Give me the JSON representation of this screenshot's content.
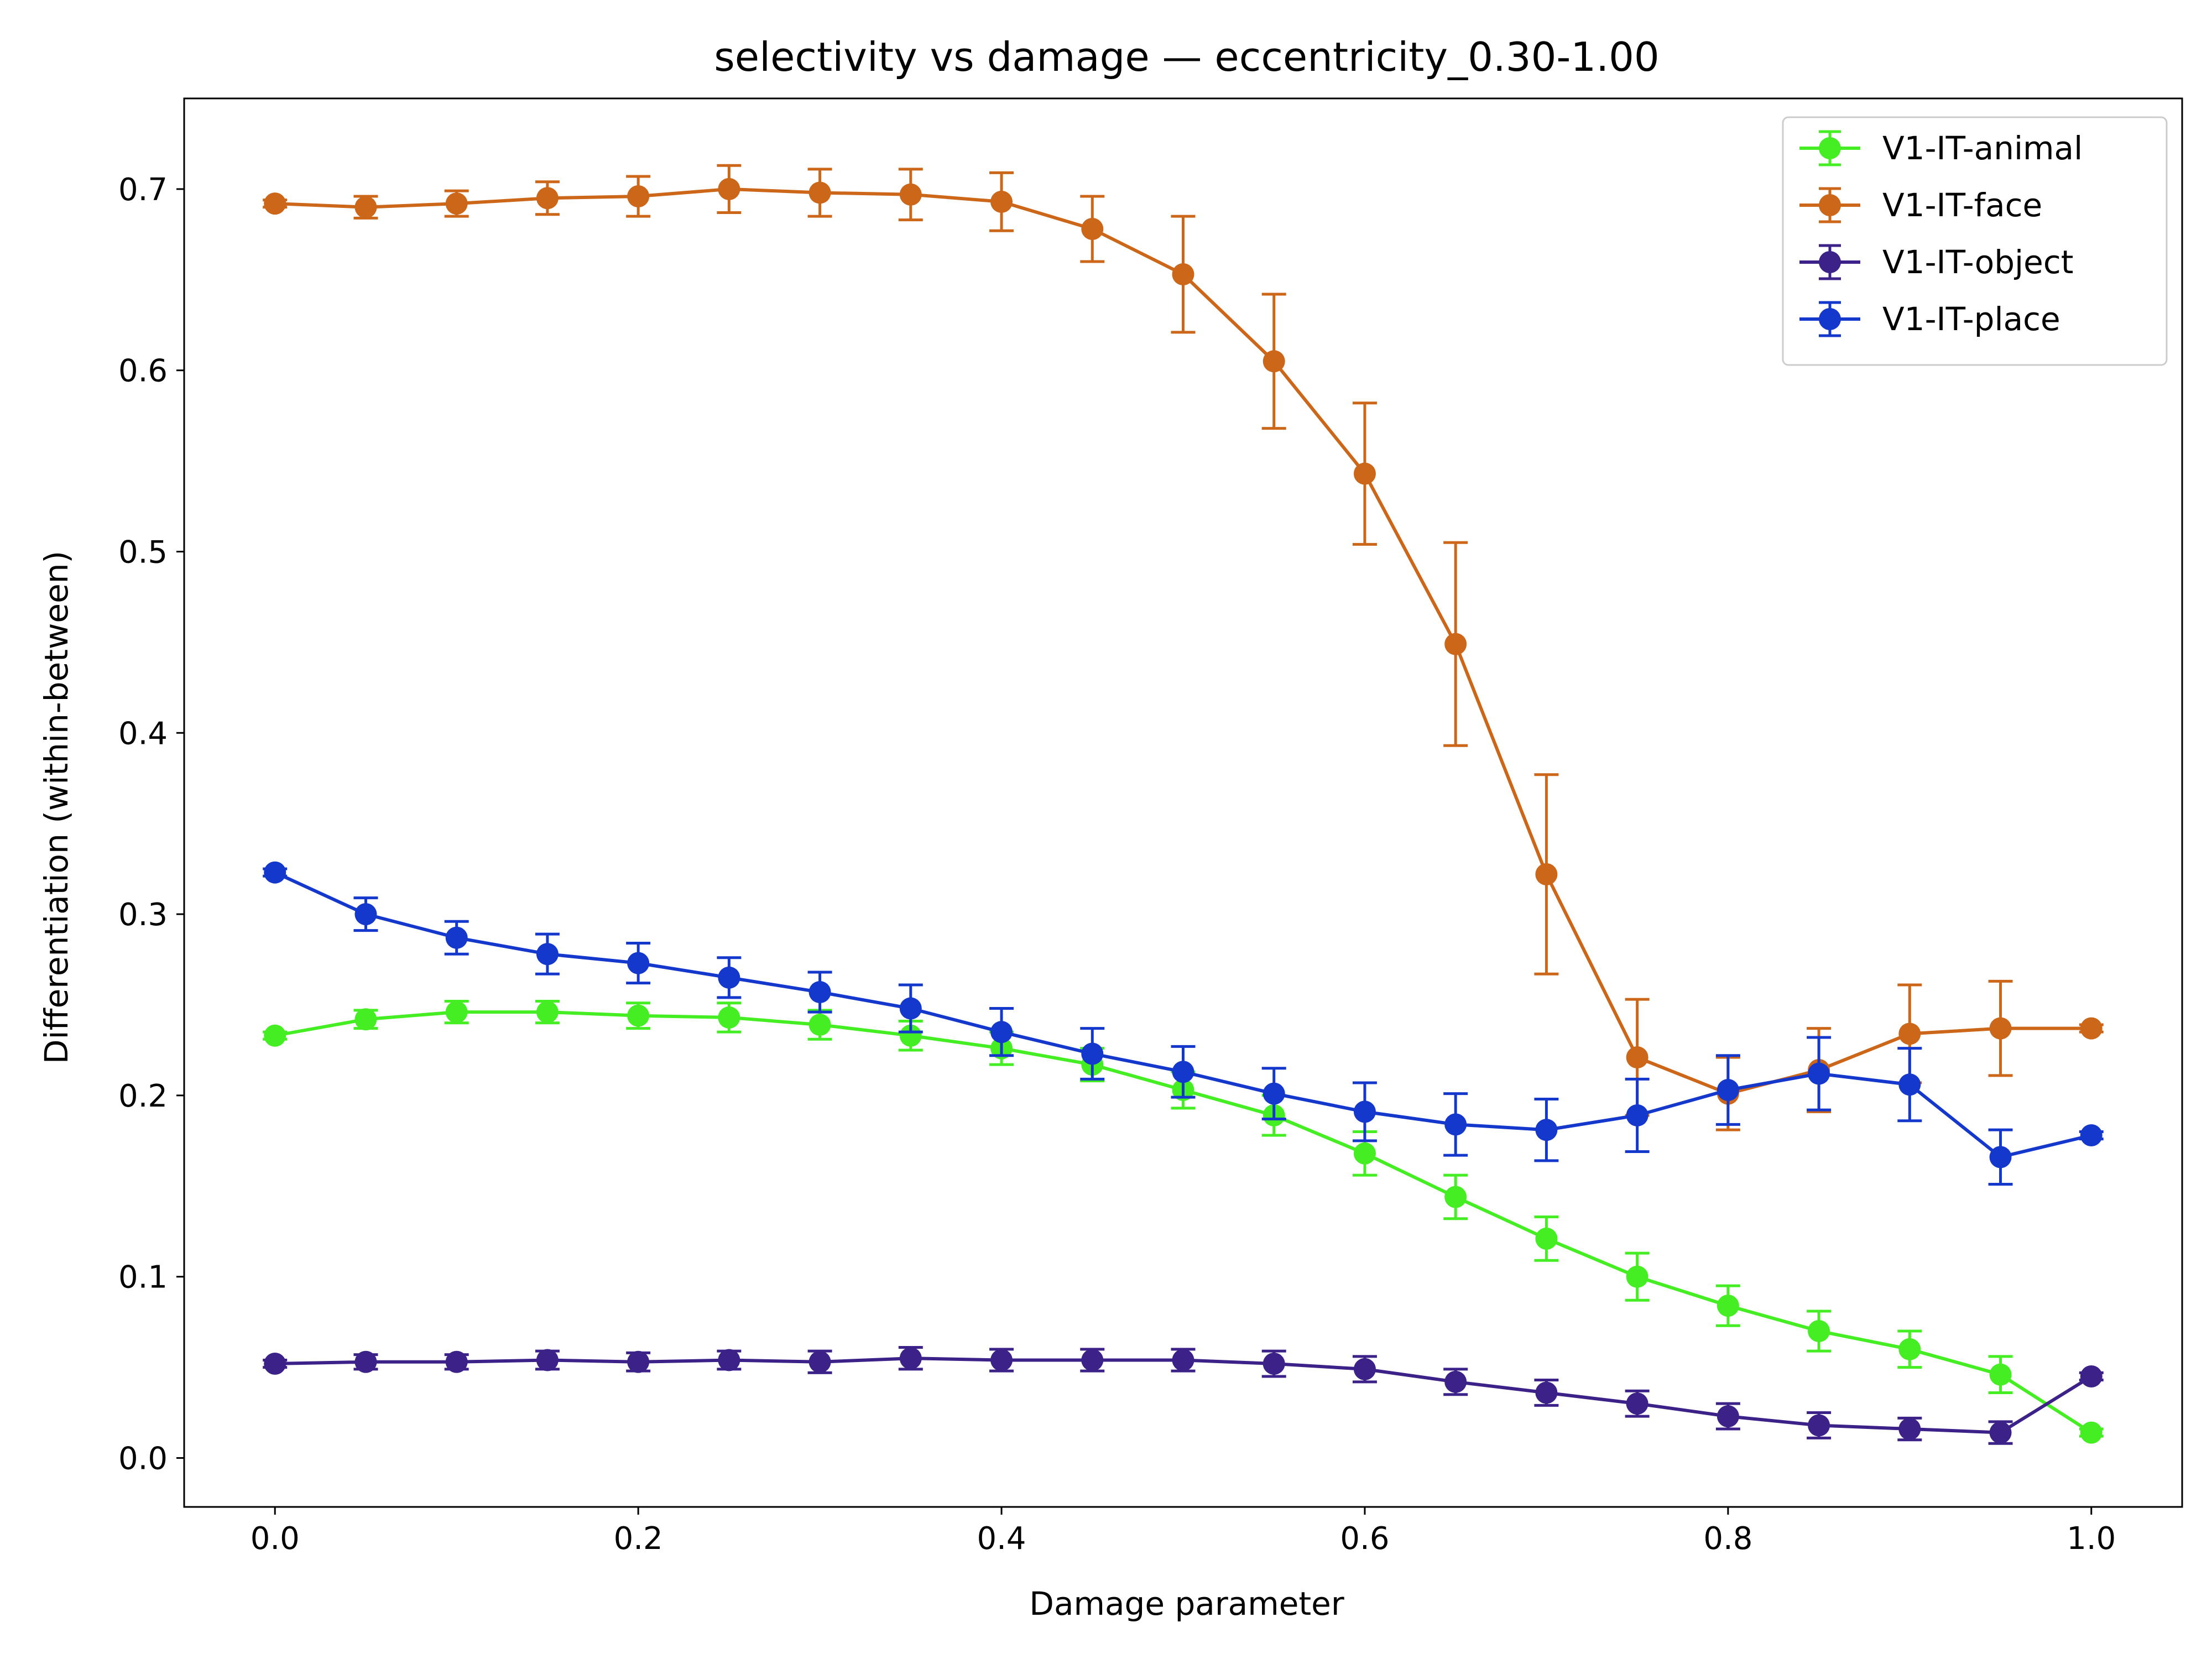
{
  "chart_data": {
    "type": "line",
    "title": "selectivity vs damage — eccentricity_0.30-1.00",
    "xlabel": "Damage parameter",
    "ylabel": "Differentiation (within-between)",
    "xlim": [
      -0.05,
      1.05
    ],
    "ylim": [
      -0.027,
      0.75
    ],
    "xticks": [
      0.0,
      0.2,
      0.4,
      0.6,
      0.8,
      1.0
    ],
    "xtick_labels": [
      "0.0",
      "0.2",
      "0.4",
      "0.6",
      "0.8",
      "1.0"
    ],
    "yticks": [
      0.0,
      0.1,
      0.2,
      0.3,
      0.4,
      0.5,
      0.6,
      0.7
    ],
    "ytick_labels": [
      "0.0",
      "0.1",
      "0.2",
      "0.3",
      "0.4",
      "0.5",
      "0.6",
      "0.7"
    ],
    "grid": false,
    "legend_position": "top-right",
    "x": [
      0.0,
      0.05,
      0.1,
      0.15,
      0.2,
      0.25,
      0.3,
      0.35,
      0.4,
      0.45,
      0.5,
      0.55,
      0.6,
      0.65,
      0.7,
      0.75,
      0.8,
      0.85,
      0.9,
      0.95,
      1.0
    ],
    "series": [
      {
        "name": "V1-IT-animal",
        "color": "#44ee22",
        "values": [
          0.233,
          0.242,
          0.246,
          0.246,
          0.244,
          0.243,
          0.239,
          0.233,
          0.226,
          0.217,
          0.203,
          0.189,
          0.168,
          0.144,
          0.121,
          0.1,
          0.084,
          0.07,
          0.06,
          0.046,
          0.014
        ],
        "errors": [
          0.002,
          0.005,
          0.006,
          0.006,
          0.007,
          0.008,
          0.008,
          0.008,
          0.009,
          0.009,
          0.01,
          0.011,
          0.012,
          0.012,
          0.012,
          0.013,
          0.011,
          0.011,
          0.01,
          0.01,
          0.002
        ]
      },
      {
        "name": "V1-IT-face",
        "color": "#cc6619",
        "values": [
          0.692,
          0.69,
          0.692,
          0.695,
          0.696,
          0.7,
          0.698,
          0.697,
          0.693,
          0.678,
          0.653,
          0.605,
          0.543,
          0.449,
          0.322,
          0.221,
          0.201,
          0.214,
          0.234,
          0.237,
          0.237
        ],
        "errors": [
          0.002,
          0.006,
          0.007,
          0.009,
          0.011,
          0.013,
          0.013,
          0.014,
          0.016,
          0.018,
          0.032,
          0.037,
          0.039,
          0.056,
          0.055,
          0.032,
          0.02,
          0.023,
          0.027,
          0.026,
          0.002
        ]
      },
      {
        "name": "V1-IT-object",
        "color": "#3c2288",
        "values": [
          0.052,
          0.053,
          0.053,
          0.054,
          0.053,
          0.054,
          0.053,
          0.055,
          0.054,
          0.054,
          0.054,
          0.052,
          0.049,
          0.042,
          0.036,
          0.03,
          0.023,
          0.018,
          0.016,
          0.014,
          0.045
        ],
        "errors": [
          0.002,
          0.004,
          0.004,
          0.005,
          0.005,
          0.005,
          0.006,
          0.006,
          0.006,
          0.006,
          0.006,
          0.007,
          0.007,
          0.007,
          0.007,
          0.007,
          0.007,
          0.007,
          0.006,
          0.006,
          0.002
        ]
      },
      {
        "name": "V1-IT-place",
        "color": "#1538cc",
        "values": [
          0.323,
          0.3,
          0.287,
          0.278,
          0.273,
          0.265,
          0.257,
          0.248,
          0.235,
          0.223,
          0.213,
          0.201,
          0.191,
          0.184,
          0.181,
          0.189,
          0.203,
          0.212,
          0.206,
          0.166,
          0.178
        ],
        "errors": [
          0.002,
          0.009,
          0.009,
          0.011,
          0.011,
          0.011,
          0.011,
          0.013,
          0.013,
          0.014,
          0.014,
          0.014,
          0.016,
          0.017,
          0.017,
          0.02,
          0.019,
          0.02,
          0.02,
          0.015,
          0.002
        ]
      }
    ]
  }
}
